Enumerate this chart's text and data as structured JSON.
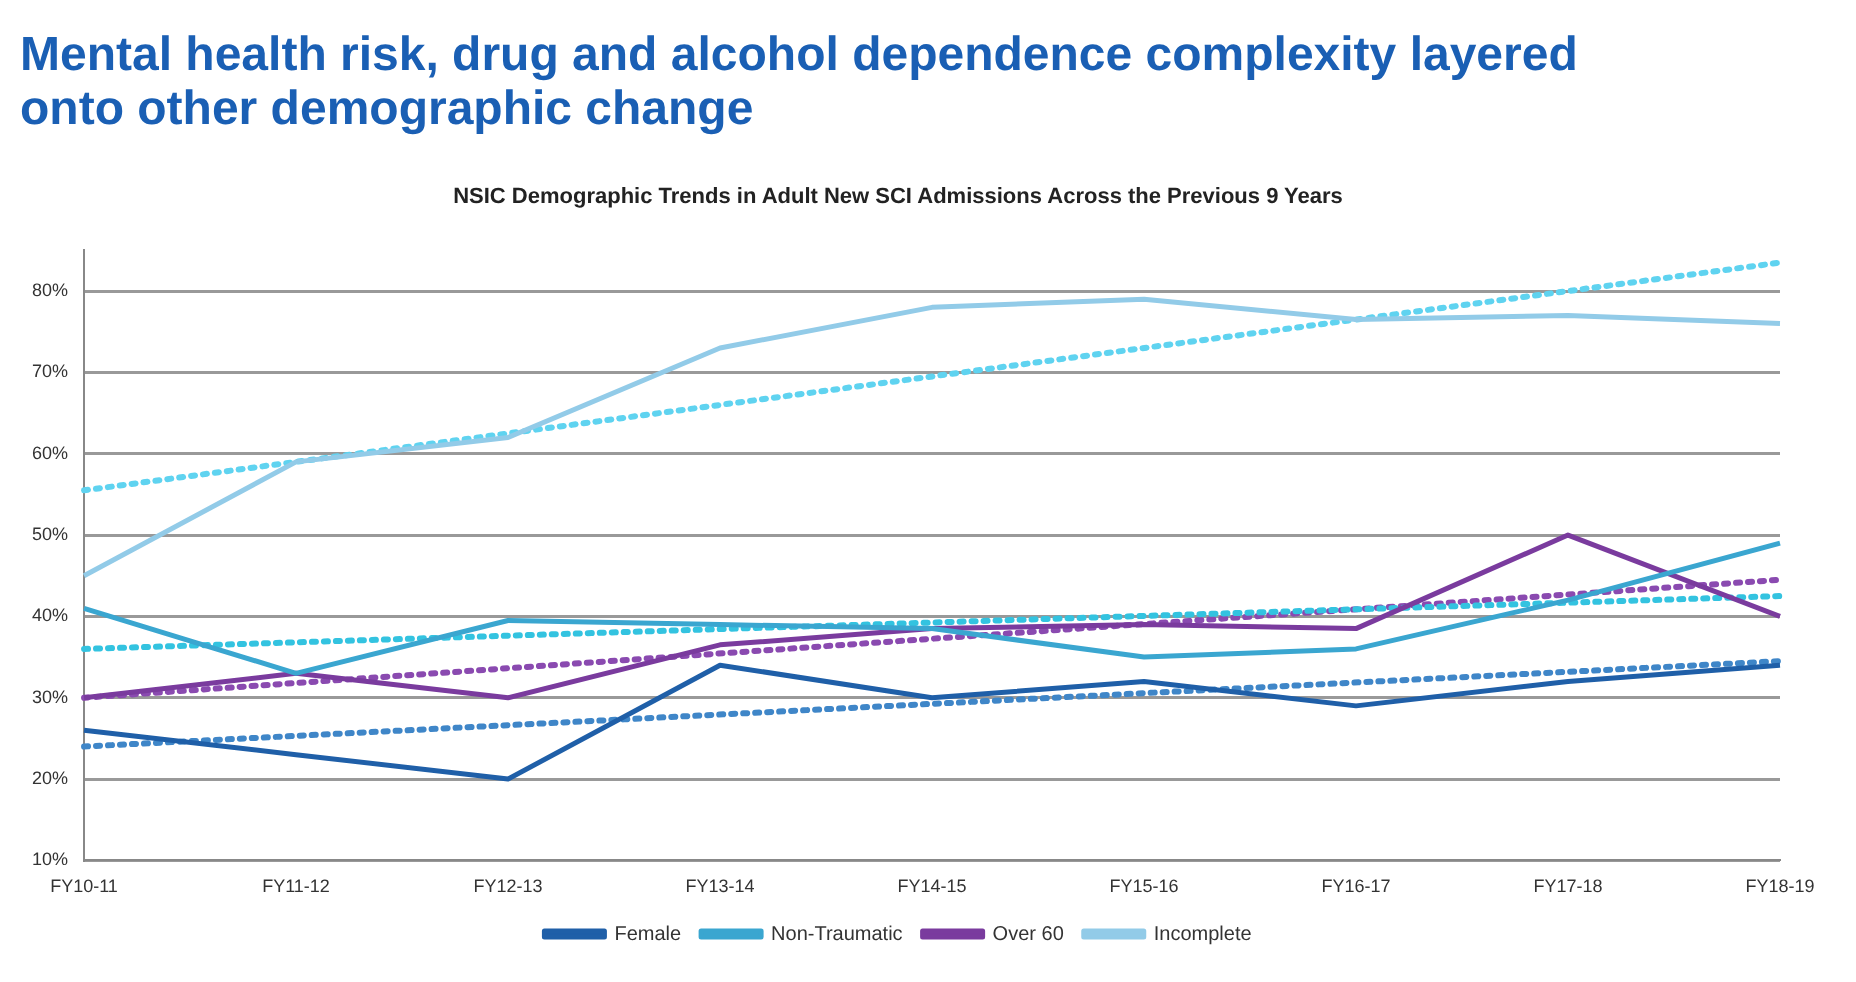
{
  "chart_data": {
    "type": "line",
    "title": "Mental health risk, drug and alcohol dependence complexity layered onto other demographic change",
    "subtitle": "NSIC Demographic Trends in Adult New SCI Admissions Across the Previous 9 Years",
    "categories": [
      "FY10-11",
      "FY11-12",
      "FY12-13",
      "FY13-14",
      "FY14-15",
      "FY15-16",
      "FY16-17",
      "FY17-18",
      "FY18-19"
    ],
    "series": [
      {
        "name": "Female",
        "color": "#1f5fa8",
        "values": [
          26,
          23,
          20,
          34,
          30,
          32,
          29,
          32,
          34
        ]
      },
      {
        "name": "Non-Traumatic",
        "color": "#3aa6d0",
        "values": [
          41,
          33,
          39.5,
          39,
          38.5,
          35,
          36,
          42,
          49
        ]
      },
      {
        "name": "Over 60",
        "color": "#7a3b9e",
        "values": [
          30,
          33,
          30,
          36.5,
          38.5,
          39,
          38.5,
          50,
          40
        ]
      },
      {
        "name": "Incomplete",
        "color": "#92cbe8",
        "values": [
          45,
          59,
          62,
          73,
          78,
          79,
          76.5,
          77,
          76
        ]
      },
      {
        "color": "#3f86c8",
        "line_style": "dotted",
        "values": [
          24,
          null,
          null,
          null,
          null,
          null,
          null,
          null,
          34.5
        ]
      },
      {
        "color": "#33c3e0",
        "line_style": "dotted",
        "values": [
          36,
          null,
          null,
          null,
          null,
          null,
          null,
          null,
          42.5
        ]
      },
      {
        "color": "#8a4ab0",
        "line_style": "dotted",
        "values": [
          30,
          null,
          null,
          null,
          null,
          null,
          null,
          null,
          44.5
        ]
      },
      {
        "color": "#5fd3f0",
        "line_style": "dotted",
        "values": [
          55.5,
          null,
          null,
          null,
          null,
          null,
          null,
          null,
          83.5
        ]
      }
    ],
    "ylim": [
      10,
      85
    ],
    "yticks": [
      {
        "value": 10,
        "label": "10%"
      },
      {
        "value": 20,
        "label": "20%"
      },
      {
        "value": 30,
        "label": "30%"
      },
      {
        "value": 40,
        "label": "40%"
      },
      {
        "value": 50,
        "label": "50%"
      },
      {
        "value": 60,
        "label": "60%"
      },
      {
        "value": 70,
        "label": "70%"
      },
      {
        "value": 80,
        "label": "80%"
      }
    ],
    "grid": "y",
    "legend": "bottom",
    "marker": "none",
    "line_style": "solid"
  }
}
